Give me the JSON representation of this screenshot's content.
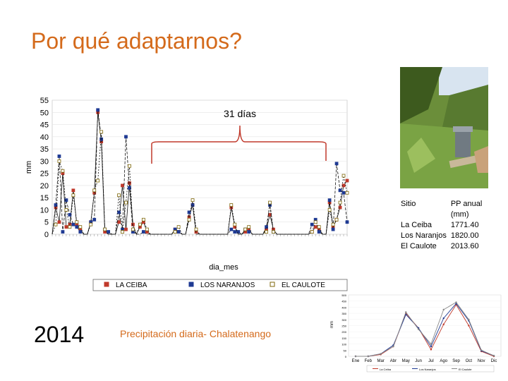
{
  "slide": {
    "title": "Por qué adaptarnos?",
    "year": "2014",
    "caption": "Precipitación diaria- Chalatenango",
    "bracket_label": "31 días"
  },
  "site_table": {
    "headers": [
      "Sitio",
      "PP anual (mm)"
    ],
    "rows": [
      [
        "La Ceiba",
        "1771.40"
      ],
      [
        "Los Naranjos",
        "1820.00"
      ],
      [
        "El Caulote",
        "2013.60"
      ]
    ]
  },
  "colors": {
    "title": "#d46a1b",
    "la_ceiba": "#c0392b",
    "los_naranjos": "#1f3a93",
    "el_caulote": "#7d6608"
  },
  "chart_data": [
    {
      "type": "line",
      "ylabel": "mm",
      "xlabel": "dia_mes",
      "ylim": [
        0,
        55
      ],
      "yticks": [
        0,
        5,
        10,
        15,
        20,
        25,
        30,
        35,
        40,
        45,
        50,
        55
      ],
      "x_count": 85,
      "legend": "bottom",
      "series": [
        {
          "name": "LA CEIBA",
          "values": [
            0,
            11,
            5,
            25,
            3,
            4,
            18,
            4,
            2,
            0,
            0,
            5,
            17,
            50,
            38,
            1,
            0,
            0,
            0,
            5,
            20,
            2,
            21,
            4,
            0,
            3,
            5,
            1,
            0,
            0,
            0,
            0,
            0,
            0,
            0,
            2,
            1,
            0,
            0,
            7,
            12,
            1,
            0,
            0,
            0,
            0,
            0,
            0,
            0,
            0,
            0,
            11,
            3,
            0,
            0,
            1,
            2,
            0,
            0,
            0,
            0,
            2,
            8,
            2,
            0,
            0,
            0,
            0,
            0,
            0,
            0,
            0,
            0,
            0,
            1,
            3,
            2,
            0,
            0,
            13,
            3,
            6,
            11,
            20,
            22
          ]
        },
        {
          "name": "LOS NARANJOS",
          "values": [
            0,
            12,
            32,
            1,
            14,
            8,
            4,
            3,
            1,
            0,
            0,
            5,
            6,
            51,
            39,
            2,
            1,
            0,
            0,
            9,
            2,
            40,
            19,
            1,
            0,
            0,
            1,
            0,
            0,
            0,
            0,
            0,
            0,
            0,
            0,
            2,
            1,
            0,
            0,
            9,
            12,
            0,
            0,
            0,
            0,
            0,
            0,
            0,
            0,
            0,
            0,
            2,
            1,
            1,
            0,
            2,
            1,
            0,
            0,
            0,
            0,
            3,
            12,
            1,
            0,
            0,
            0,
            0,
            0,
            0,
            0,
            0,
            0,
            0,
            4,
            6,
            1,
            0,
            0,
            14,
            2,
            29,
            18,
            17,
            5
          ]
        },
        {
          "name": "EL CAULOTE",
          "values": [
            0,
            4,
            30,
            26,
            10,
            3,
            16,
            5,
            3,
            0,
            0,
            4,
            18,
            22,
            42,
            2,
            0,
            0,
            0,
            16,
            1,
            13,
            28,
            2,
            0,
            4,
            6,
            2,
            0,
            0,
            0,
            0,
            0,
            0,
            0,
            1,
            3,
            0,
            0,
            6,
            14,
            2,
            0,
            0,
            0,
            0,
            0,
            0,
            0,
            0,
            0,
            12,
            4,
            0,
            0,
            2,
            3,
            0,
            0,
            0,
            0,
            1,
            13,
            1,
            0,
            0,
            0,
            0,
            0,
            0,
            0,
            0,
            0,
            0,
            1,
            5,
            3,
            0,
            0,
            10,
            4,
            6,
            13,
            24,
            17
          ]
        }
      ]
    },
    {
      "type": "line",
      "ylabel": "mm",
      "ylim": [
        0,
        500
      ],
      "yticks": [
        0,
        50,
        100,
        150,
        200,
        250,
        300,
        350,
        400,
        450,
        500
      ],
      "categories": [
        "Ene",
        "Feb",
        "Mar",
        "Abr",
        "May",
        "Jun",
        "Jul",
        "Ago",
        "Sep",
        "Oct",
        "Nov",
        "Dic"
      ],
      "series": [
        {
          "name": "La Ceiba",
          "values": [
            0,
            0,
            15,
            80,
            350,
            230,
            55,
            260,
            420,
            250,
            40,
            0
          ]
        },
        {
          "name": "Los Naranjos",
          "values": [
            0,
            0,
            20,
            90,
            340,
            230,
            80,
            310,
            430,
            290,
            45,
            5
          ]
        },
        {
          "name": "El Caulote",
          "values": [
            0,
            0,
            20,
            80,
            360,
            220,
            100,
            380,
            440,
            300,
            50,
            5
          ]
        }
      ]
    }
  ]
}
